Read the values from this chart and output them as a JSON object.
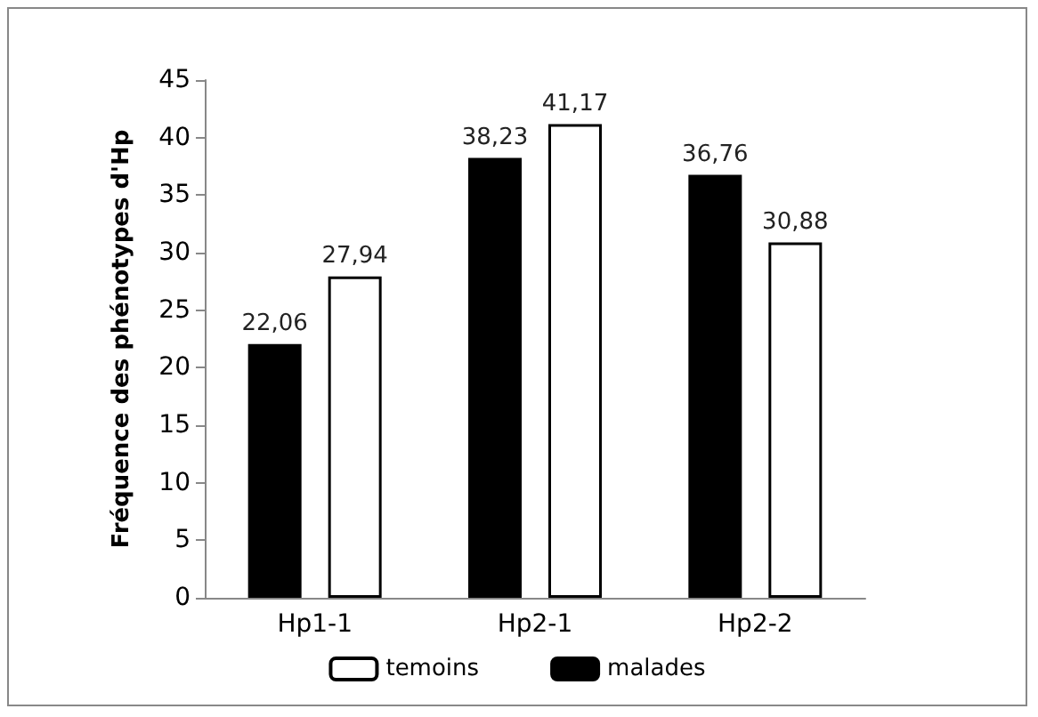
{
  "chart_data": {
    "type": "bar",
    "ylabel": "Fréquence des phénotypes d'Hp",
    "categories": [
      "Hp1-1",
      "Hp2-1",
      "Hp2-2"
    ],
    "series": [
      {
        "name": "malades",
        "color": "#000000",
        "values": [
          22.06,
          38.23,
          36.76
        ],
        "value_labels": [
          "22,06",
          "38,23",
          "36,76"
        ]
      },
      {
        "name": "temoins",
        "color": "#ffffff",
        "values": [
          27.94,
          41.17,
          30.88
        ],
        "value_labels": [
          "27,94",
          "41,17",
          "30,88"
        ]
      }
    ],
    "ylim": [
      0,
      45
    ],
    "yticks": [
      0,
      5,
      10,
      15,
      20,
      25,
      30,
      35,
      40,
      45
    ],
    "grid": false,
    "legend": "bottom"
  }
}
